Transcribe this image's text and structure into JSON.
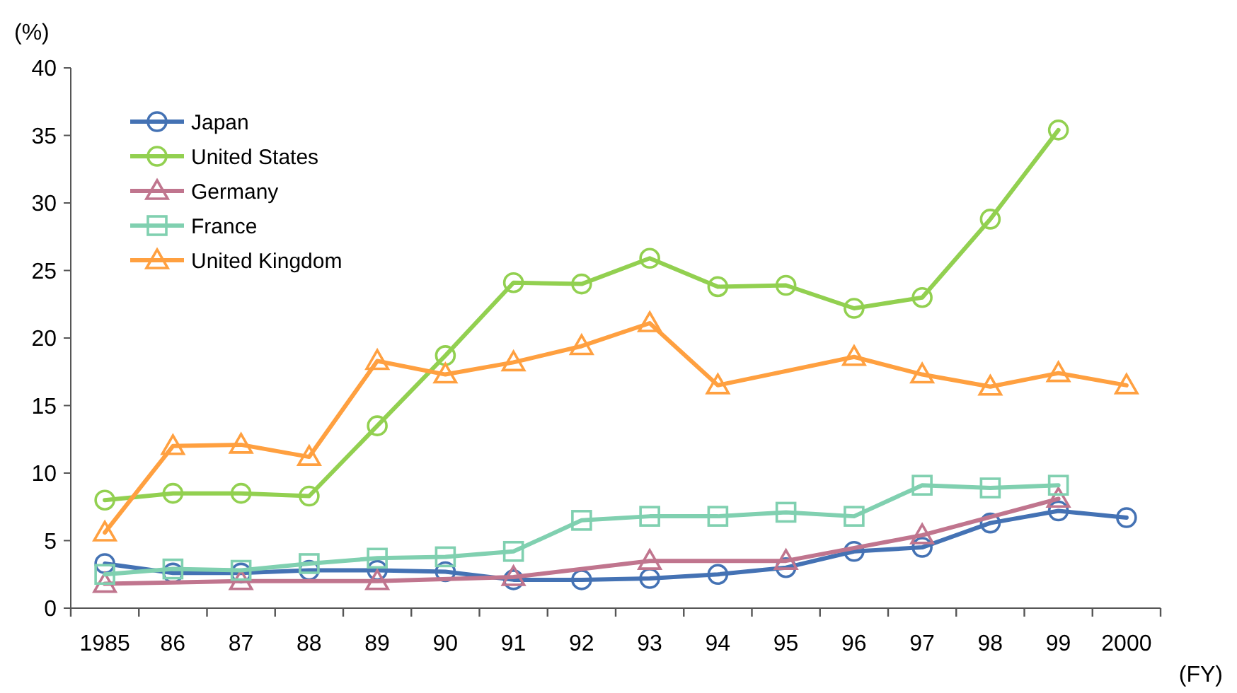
{
  "chart_data": {
    "type": "line",
    "ylabel": "(%)",
    "xlabel": "(FY)",
    "categories": [
      "1985",
      "86",
      "87",
      "88",
      "89",
      "90",
      "91",
      "92",
      "93",
      "94",
      "95",
      "96",
      "97",
      "98",
      "99",
      "2000"
    ],
    "ylim": [
      0,
      40
    ],
    "yticks": [
      0,
      5,
      10,
      15,
      20,
      25,
      30,
      35,
      40
    ],
    "grid": false,
    "legend": "top left",
    "line_style": "solid",
    "series": [
      {
        "name": "Japan",
        "color": "#4472b4",
        "marker": "circle",
        "values": [
          3.3,
          2.6,
          2.6,
          2.8,
          2.8,
          2.7,
          2.1,
          2.1,
          2.2,
          2.5,
          3.0,
          4.2,
          4.5,
          6.3,
          7.2,
          6.7
        ]
      },
      {
        "name": "United States",
        "color": "#92d050",
        "marker": "circle",
        "values": [
          8.0,
          8.5,
          8.5,
          8.3,
          13.5,
          18.7,
          24.1,
          24.0,
          25.9,
          23.8,
          23.9,
          22.2,
          23.0,
          28.8,
          35.4,
          null
        ]
      },
      {
        "name": "Germany",
        "color": "#c0758e",
        "marker": "triangle",
        "values": [
          1.8,
          null,
          2.0,
          null,
          2.0,
          null,
          2.3,
          null,
          3.5,
          null,
          3.5,
          null,
          5.4,
          null,
          8.1,
          null
        ]
      },
      {
        "name": "France",
        "color": "#80d0b0",
        "marker": "square",
        "values": [
          2.5,
          2.9,
          2.8,
          3.3,
          3.7,
          3.8,
          4.2,
          6.5,
          6.8,
          6.8,
          7.1,
          6.8,
          9.1,
          8.9,
          9.1,
          null
        ]
      },
      {
        "name": "United Kingdom",
        "color": "#ffa040",
        "marker": "triangle",
        "values": [
          5.6,
          12.0,
          12.1,
          11.2,
          18.3,
          17.3,
          18.2,
          19.4,
          21.1,
          16.5,
          null,
          18.6,
          17.3,
          16.4,
          17.4,
          16.5
        ]
      }
    ]
  }
}
